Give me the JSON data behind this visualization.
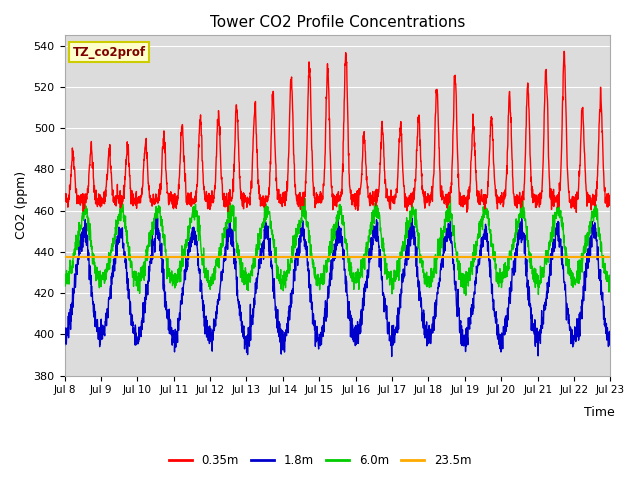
{
  "title": "Tower CO2 Profile Concentrations",
  "xlabel": "Time",
  "ylabel": "CO2 (ppm)",
  "ylim": [
    380,
    545
  ],
  "yticks": [
    380,
    400,
    420,
    440,
    460,
    480,
    500,
    520,
    540
  ],
  "date_start": 8,
  "date_end": 23,
  "n_days": 15,
  "series_labels": [
    "0.35m",
    "1.8m",
    "6.0m",
    "23.5m"
  ],
  "series_colors": [
    "#ff0000",
    "#0000cc",
    "#00cc00",
    "#ffaa00"
  ],
  "series_linewidths": [
    1.0,
    1.0,
    1.0,
    1.5
  ],
  "annotation_text": "TZ_co2prof",
  "annotation_bgcolor": "#ffffcc",
  "annotation_edgecolor": "#cccc00",
  "fig_facecolor": "#ffffff",
  "plot_bgcolor": "#dcdcdc",
  "grid_color": "#ffffff",
  "orange_line_value": 437.5,
  "n_pts": 2160
}
